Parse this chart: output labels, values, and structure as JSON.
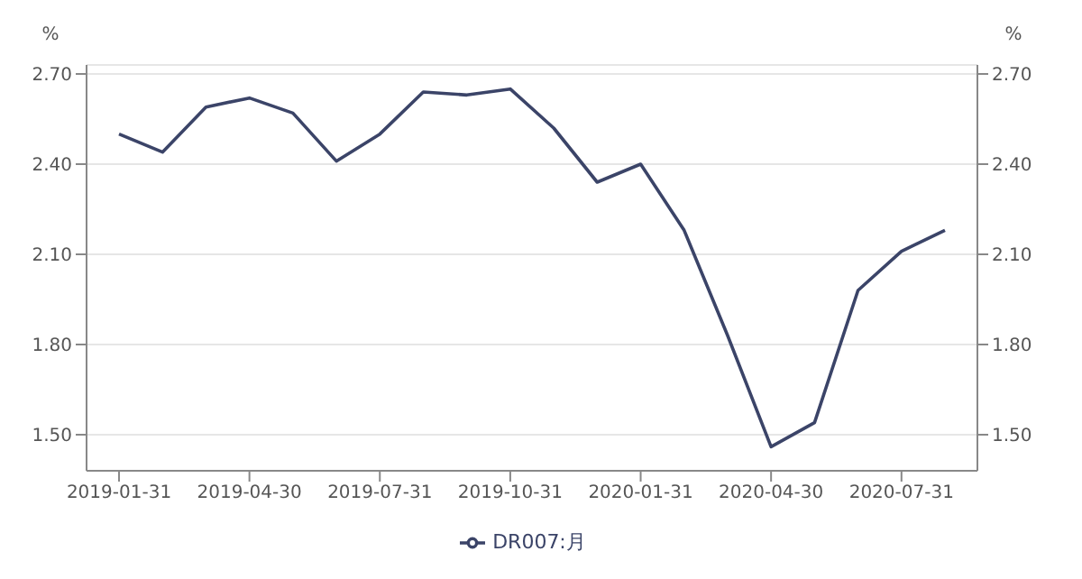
{
  "chart_data": {
    "type": "line",
    "categories": [
      "2019-01-31",
      null,
      null,
      "2019-04-30",
      null,
      null,
      "2019-07-31",
      null,
      null,
      "2019-10-31",
      null,
      null,
      "2020-01-31",
      null,
      null,
      "2020-04-30",
      null,
      null,
      "2020-07-31",
      null
    ],
    "series": [
      {
        "name": "DR007:月",
        "color": "#3b4468",
        "values": [
          2.5,
          2.44,
          2.59,
          2.62,
          2.57,
          2.41,
          2.5,
          2.64,
          2.63,
          2.65,
          2.52,
          2.34,
          2.4,
          2.18,
          1.83,
          1.46,
          1.54,
          1.98,
          2.11,
          2.18
        ]
      }
    ],
    "ylabel": "%",
    "y2label": "%",
    "ylim": [
      1.38,
      2.73
    ],
    "yticks": [
      {
        "value": 1.5,
        "label": "1.50"
      },
      {
        "value": 1.8,
        "label": "1.80"
      },
      {
        "value": 2.1,
        "label": "2.10"
      },
      {
        "value": 2.4,
        "label": "2.40"
      },
      {
        "value": 2.7,
        "label": "2.70"
      }
    ],
    "y2lim": [
      1.38,
      2.73
    ],
    "y2ticks": [
      {
        "value": 1.5,
        "label": "1.50"
      },
      {
        "value": 1.8,
        "label": "1.80"
      },
      {
        "value": 2.1,
        "label": "2.10"
      },
      {
        "value": 2.4,
        "label": "2.40"
      },
      {
        "value": 2.7,
        "label": "2.70"
      }
    ],
    "grid": "y",
    "legend": "bottom",
    "marker": "none",
    "line_style": "solid"
  }
}
